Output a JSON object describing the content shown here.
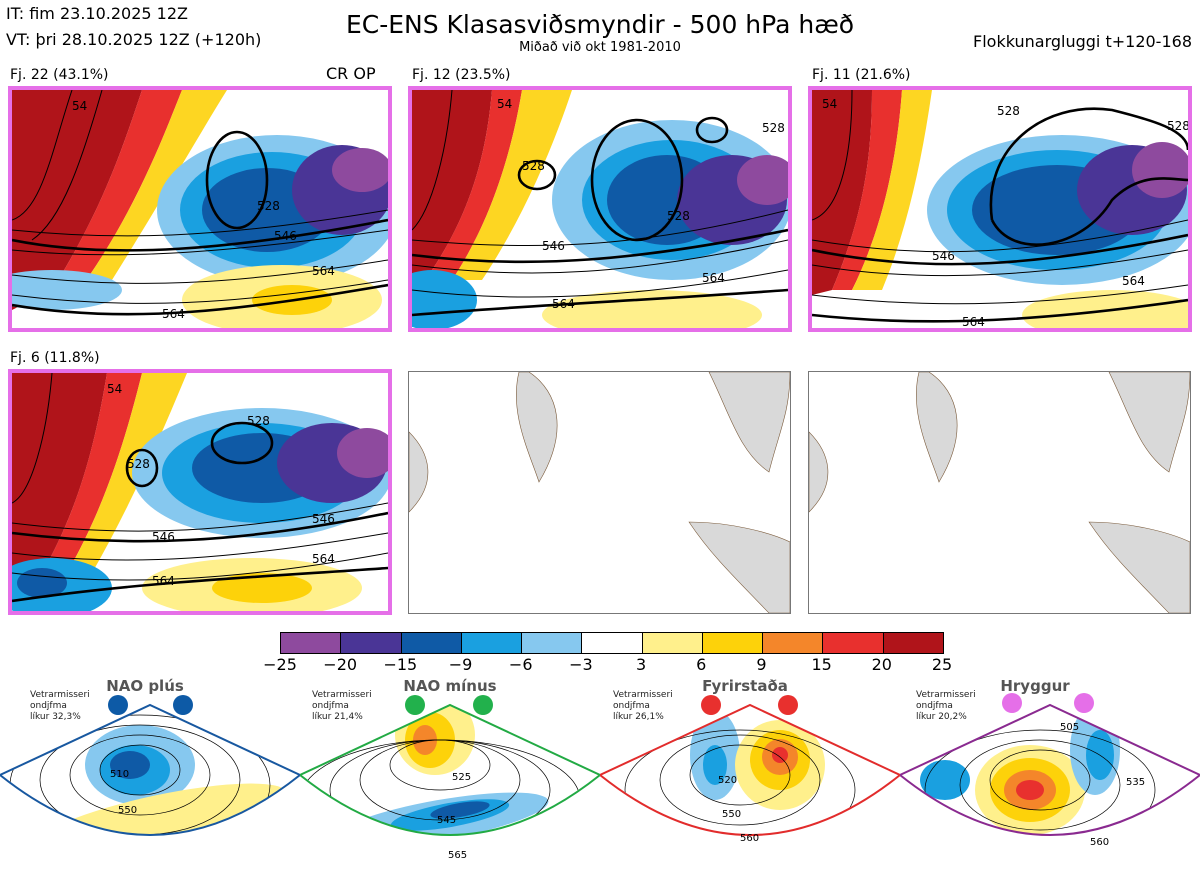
{
  "header": {
    "it_line": "IT: fim 23.10.2025 12Z",
    "vt_line": "VT: þri 28.10.2025 12Z  (+120h)",
    "title": "EC-ENS Klasasviðsmyndir - 500 hPa hæð",
    "subtitle": "Miðað við okt 1981-2010",
    "window": "Flokkunargluggi t+120-168"
  },
  "panels": [
    {
      "label": "Fj. 22 (43.1%)",
      "marker": "CR OP",
      "contours": [
        "546",
        "564",
        "564",
        "528",
        "54"
      ]
    },
    {
      "label": "Fj. 12 (23.5%)",
      "contours": [
        "546",
        "564",
        "564",
        "528",
        "528",
        "528",
        "54"
      ]
    },
    {
      "label": "Fj. 11 (21.6%)",
      "contours": [
        "546",
        "564",
        "564",
        "528",
        "528",
        "54"
      ]
    },
    {
      "label": "Fj. 6 (11.8%)",
      "contours": [
        "546",
        "564",
        "564",
        "528",
        "528",
        "546",
        "54"
      ]
    }
  ],
  "colorbar": {
    "ticks": [
      "−25",
      "−20",
      "−15",
      "−9",
      "−6",
      "−3",
      "3",
      "6",
      "9",
      "15",
      "20",
      "25"
    ],
    "colors": [
      "#8e4a9e",
      "#4a3596",
      "#0f5aa6",
      "#1aa0e0",
      "#86c8ef",
      "#ffffff",
      "#fff08c",
      "#fdd20a",
      "#f4862a",
      "#e8302e",
      "#b0141a"
    ]
  },
  "regimes": [
    {
      "name": "NAO plús",
      "side": [
        "Vetrarmisseri",
        "ondjfma",
        "líkur 32,3%"
      ],
      "dot_color": "#0d5aa6",
      "frame_color": "#1858a0",
      "contours": [
        "510",
        "550"
      ]
    },
    {
      "name": "NAO mínus",
      "side": [
        "Vetrarmisseri",
        "ondjfma",
        "líkur 21,4%"
      ],
      "dot_color": "#22b14c",
      "frame_color": "#22aa44",
      "contours": [
        "525",
        "545",
        "565"
      ]
    },
    {
      "name": "Fyrirstaða",
      "side": [
        "Vetrarmisseri",
        "ondjfma",
        "líkur 26,1%"
      ],
      "dot_color": "#e8302e",
      "frame_color": "#e22c2c",
      "contours": [
        "520",
        "550",
        "560"
      ]
    },
    {
      "name": "Hryggur",
      "side": [
        "Vetrarmisseri",
        "ondjfma",
        "líkur 20,2%"
      ],
      "dot_color": "#e56fe8",
      "frame_color": "#8a2a90",
      "contours": [
        "505",
        "535",
        "560"
      ]
    }
  ]
}
